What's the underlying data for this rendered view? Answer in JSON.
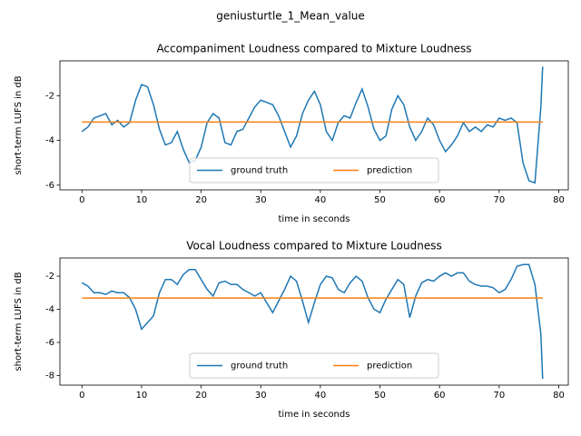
{
  "title": "geniusturtle_1_Mean_value",
  "chart_data": [
    {
      "type": "line",
      "title": "Accompaniment Loudness compared to Mixture Loudness",
      "x_label": "time in seconds",
      "y_label": "short-term LUFS in dB",
      "x": [
        0,
        1,
        2,
        3,
        4,
        5,
        6,
        7,
        8,
        9,
        10,
        11,
        12,
        13,
        14,
        15,
        16,
        17,
        18,
        19,
        20,
        21,
        22,
        23,
        24,
        25,
        26,
        27,
        28,
        29,
        30,
        31,
        32,
        33,
        34,
        35,
        36,
        37,
        38,
        39,
        40,
        41,
        42,
        43,
        44,
        45,
        46,
        47,
        48,
        49,
        50,
        51,
        52,
        53,
        54,
        55,
        56,
        57,
        58,
        59,
        60,
        61,
        62,
        63,
        64,
        65,
        66,
        67,
        68,
        69,
        70,
        71,
        72,
        73,
        74,
        75,
        76,
        77,
        77.3
      ],
      "series": [
        {
          "name": "ground truth",
          "color": "#1f77b4",
          "values": [
            -3.6,
            -3.4,
            -3.0,
            -2.9,
            -2.8,
            -3.3,
            -3.1,
            -3.4,
            -3.2,
            -2.2,
            -1.5,
            -1.6,
            -2.4,
            -3.5,
            -4.2,
            -4.1,
            -3.6,
            -4.4,
            -5.0,
            -4.9,
            -4.3,
            -3.2,
            -2.8,
            -3.0,
            -4.1,
            -4.2,
            -3.6,
            -3.5,
            -3.0,
            -2.5,
            -2.2,
            -2.3,
            -2.4,
            -2.9,
            -3.6,
            -4.3,
            -3.8,
            -2.8,
            -2.2,
            -1.8,
            -2.4,
            -3.6,
            -4.0,
            -3.2,
            -2.9,
            -3.0,
            -2.3,
            -1.7,
            -2.5,
            -3.5,
            -4.0,
            -3.8,
            -2.6,
            -2.0,
            -2.4,
            -3.4,
            -4.0,
            -3.6,
            -3.0,
            -3.3,
            -4.0,
            -4.5,
            -4.2,
            -3.8,
            -3.2,
            -3.6,
            -3.4,
            -3.6,
            -3.3,
            -3.4,
            -3.0,
            -3.1,
            -3.0,
            -3.2,
            -5.0,
            -5.8,
            -5.9,
            -2.5,
            -0.7
          ]
        },
        {
          "name": "prediction",
          "color": "#ff7f0e",
          "values": [
            -3.18,
            -3.18,
            -3.18,
            -3.18,
            -3.18,
            -3.18,
            -3.18,
            -3.18,
            -3.18,
            -3.18,
            -3.18,
            -3.18,
            -3.18,
            -3.18,
            -3.18,
            -3.18,
            -3.18,
            -3.18,
            -3.18,
            -3.18,
            -3.18,
            -3.18,
            -3.18,
            -3.18,
            -3.18,
            -3.18,
            -3.18,
            -3.18,
            -3.18,
            -3.18,
            -3.18,
            -3.18,
            -3.18,
            -3.18,
            -3.18,
            -3.18,
            -3.18,
            -3.18,
            -3.18,
            -3.18,
            -3.18,
            -3.18,
            -3.18,
            -3.18,
            -3.18,
            -3.18,
            -3.18,
            -3.18,
            -3.18,
            -3.18,
            -3.18,
            -3.18,
            -3.18,
            -3.18,
            -3.18,
            -3.18,
            -3.18,
            -3.18,
            -3.18,
            -3.18,
            -3.18,
            -3.18,
            -3.18,
            -3.18,
            -3.18,
            -3.18,
            -3.18,
            -3.18,
            -3.18,
            -3.18,
            -3.18,
            -3.18,
            -3.18,
            -3.18,
            -3.18,
            -3.18,
            -3.18,
            -3.18,
            -3.18
          ]
        }
      ],
      "xlim": [
        -3.7,
        81.6
      ],
      "xticks": [
        0,
        10,
        20,
        30,
        40,
        50,
        60,
        70,
        80
      ],
      "ylim": [
        -6.21,
        -0.44
      ],
      "yticks": [
        -6,
        -4,
        -2
      ],
      "legend": "lower center"
    },
    {
      "type": "line",
      "title": "Vocal Loudness compared to Mixture Loudness",
      "x_label": "time in seconds",
      "y_label": "short-term LUFS in dB",
      "x": [
        0,
        1,
        2,
        3,
        4,
        5,
        6,
        7,
        8,
        9,
        10,
        11,
        12,
        13,
        14,
        15,
        16,
        17,
        18,
        19,
        20,
        21,
        22,
        23,
        24,
        25,
        26,
        27,
        28,
        29,
        30,
        31,
        32,
        33,
        34,
        35,
        36,
        37,
        38,
        39,
        40,
        41,
        42,
        43,
        44,
        45,
        46,
        47,
        48,
        49,
        50,
        51,
        52,
        53,
        54,
        55,
        56,
        57,
        58,
        59,
        60,
        61,
        62,
        63,
        64,
        65,
        66,
        67,
        68,
        69,
        70,
        71,
        72,
        73,
        74,
        75,
        76,
        77,
        77.3
      ],
      "series": [
        {
          "name": "ground truth",
          "color": "#1f77b4",
          "values": [
            -2.4,
            -2.6,
            -3.0,
            -3.0,
            -3.1,
            -2.9,
            -3.0,
            -3.0,
            -3.3,
            -4.0,
            -5.2,
            -4.8,
            -4.4,
            -3.0,
            -2.2,
            -2.2,
            -2.5,
            -1.9,
            -1.6,
            -1.6,
            -2.2,
            -2.8,
            -3.2,
            -2.4,
            -2.3,
            -2.5,
            -2.5,
            -2.8,
            -3.0,
            -3.2,
            -3.0,
            -3.6,
            -4.2,
            -3.5,
            -2.8,
            -2.0,
            -2.3,
            -3.5,
            -4.8,
            -3.6,
            -2.5,
            -2.0,
            -2.1,
            -2.8,
            -3.0,
            -2.4,
            -2.0,
            -2.3,
            -3.3,
            -4.0,
            -4.2,
            -3.4,
            -2.8,
            -2.2,
            -2.5,
            -4.5,
            -3.2,
            -2.4,
            -2.2,
            -2.3,
            -2.0,
            -1.8,
            -2.0,
            -1.8,
            -1.8,
            -2.3,
            -2.5,
            -2.6,
            -2.6,
            -2.7,
            -3.0,
            -2.8,
            -2.2,
            -1.4,
            -1.3,
            -1.3,
            -2.5,
            -5.5,
            -8.2
          ]
        },
        {
          "name": "prediction",
          "color": "#ff7f0e",
          "values": [
            -3.32,
            -3.32,
            -3.32,
            -3.32,
            -3.32,
            -3.32,
            -3.32,
            -3.32,
            -3.32,
            -3.32,
            -3.32,
            -3.32,
            -3.32,
            -3.32,
            -3.32,
            -3.32,
            -3.32,
            -3.32,
            -3.32,
            -3.32,
            -3.32,
            -3.32,
            -3.32,
            -3.32,
            -3.32,
            -3.32,
            -3.32,
            -3.32,
            -3.32,
            -3.32,
            -3.32,
            -3.32,
            -3.32,
            -3.32,
            -3.32,
            -3.32,
            -3.32,
            -3.32,
            -3.32,
            -3.32,
            -3.32,
            -3.32,
            -3.32,
            -3.32,
            -3.32,
            -3.32,
            -3.32,
            -3.32,
            -3.32,
            -3.32,
            -3.32,
            -3.32,
            -3.32,
            -3.32,
            -3.32,
            -3.32,
            -3.32,
            -3.32,
            -3.32,
            -3.32,
            -3.32,
            -3.32,
            -3.32,
            -3.32,
            -3.32,
            -3.32,
            -3.32,
            -3.32,
            -3.32,
            -3.32,
            -3.32,
            -3.32,
            -3.32,
            -3.32,
            -3.32,
            -3.32,
            -3.32,
            -3.32,
            -3.32
          ]
        }
      ],
      "xlim": [
        -3.7,
        81.6
      ],
      "xticks": [
        0,
        10,
        20,
        30,
        40,
        50,
        60,
        70,
        80
      ],
      "ylim": [
        -8.58,
        -0.9
      ],
      "yticks": [
        -8,
        -6,
        -4,
        -2
      ],
      "legend": "lower center"
    }
  ]
}
